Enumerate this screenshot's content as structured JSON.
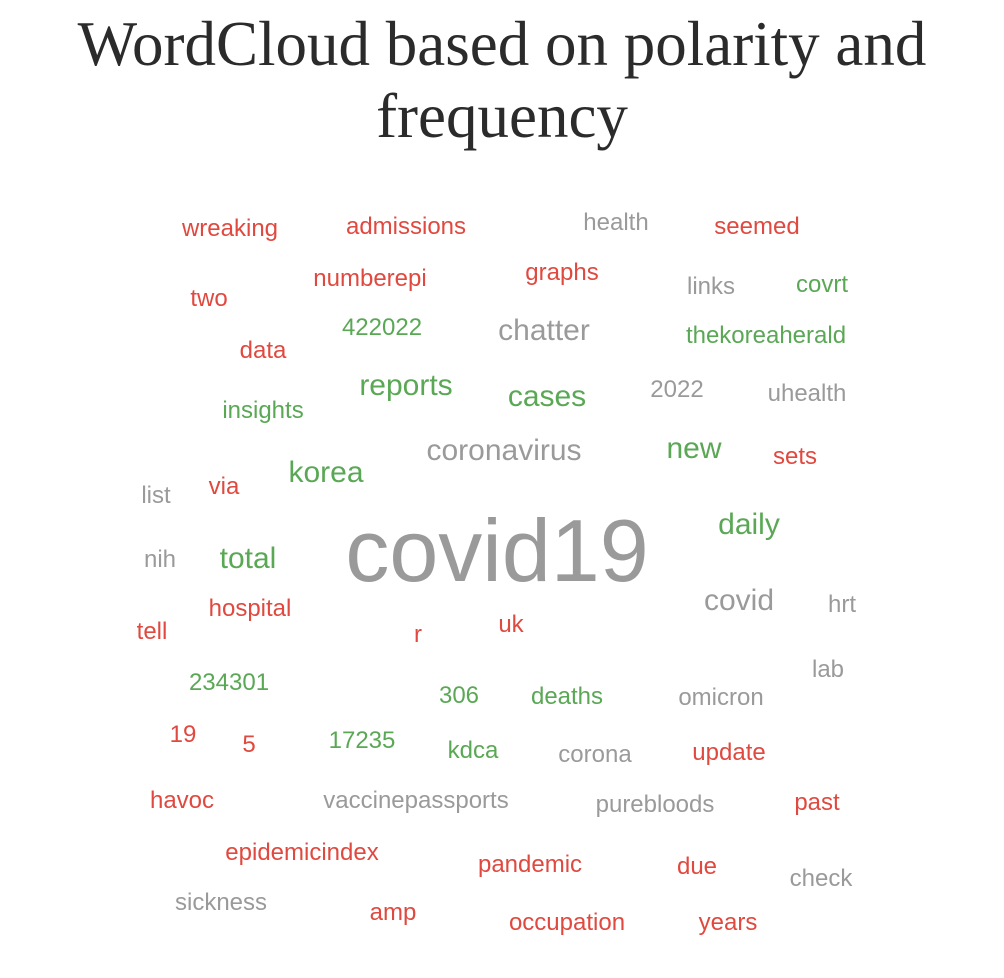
{
  "chart_data": {
    "type": "wordcloud",
    "title": "WordCloud based on polarity and frequency",
    "colors": {
      "positive": "#5aa855",
      "negative": "#e0493f",
      "neutral": "#9a9a9a"
    },
    "words": [
      {
        "text": "covid19",
        "size": 7,
        "polarity": "neutral"
      },
      {
        "text": "coronavirus",
        "size": 3,
        "polarity": "neutral"
      },
      {
        "text": "chatter",
        "size": 3,
        "polarity": "neutral"
      },
      {
        "text": "covid",
        "size": 3,
        "polarity": "neutral"
      },
      {
        "text": "reports",
        "size": 3,
        "polarity": "positive"
      },
      {
        "text": "cases",
        "size": 3,
        "polarity": "positive"
      },
      {
        "text": "korea",
        "size": 3,
        "polarity": "positive"
      },
      {
        "text": "new",
        "size": 3,
        "polarity": "positive"
      },
      {
        "text": "daily",
        "size": 3,
        "polarity": "positive"
      },
      {
        "text": "total",
        "size": 3,
        "polarity": "positive"
      },
      {
        "text": "wreaking",
        "size": 1,
        "polarity": "negative"
      },
      {
        "text": "admissions",
        "size": 1,
        "polarity": "negative"
      },
      {
        "text": "health",
        "size": 1,
        "polarity": "neutral"
      },
      {
        "text": "seemed",
        "size": 1,
        "polarity": "negative"
      },
      {
        "text": "numberepi",
        "size": 1,
        "polarity": "negative"
      },
      {
        "text": "graphs",
        "size": 1,
        "polarity": "negative"
      },
      {
        "text": "two",
        "size": 1,
        "polarity": "negative"
      },
      {
        "text": "links",
        "size": 1,
        "polarity": "neutral"
      },
      {
        "text": "covrt",
        "size": 1,
        "polarity": "positive"
      },
      {
        "text": "422022",
        "size": 1,
        "polarity": "positive"
      },
      {
        "text": "thekoreaherald",
        "size": 1,
        "polarity": "positive"
      },
      {
        "text": "data",
        "size": 1,
        "polarity": "negative"
      },
      {
        "text": "2022",
        "size": 1,
        "polarity": "neutral"
      },
      {
        "text": "uhealth",
        "size": 1,
        "polarity": "neutral"
      },
      {
        "text": "insights",
        "size": 1,
        "polarity": "positive"
      },
      {
        "text": "sets",
        "size": 1,
        "polarity": "negative"
      },
      {
        "text": "list",
        "size": 1,
        "polarity": "neutral"
      },
      {
        "text": "via",
        "size": 1,
        "polarity": "negative"
      },
      {
        "text": "nih",
        "size": 1,
        "polarity": "neutral"
      },
      {
        "text": "hospital",
        "size": 1,
        "polarity": "negative"
      },
      {
        "text": "hrt",
        "size": 1,
        "polarity": "neutral"
      },
      {
        "text": "tell",
        "size": 1,
        "polarity": "negative"
      },
      {
        "text": "r",
        "size": 1,
        "polarity": "negative"
      },
      {
        "text": "uk",
        "size": 1,
        "polarity": "negative"
      },
      {
        "text": "lab",
        "size": 1,
        "polarity": "neutral"
      },
      {
        "text": "234301",
        "size": 1,
        "polarity": "positive"
      },
      {
        "text": "306",
        "size": 1,
        "polarity": "positive"
      },
      {
        "text": "deaths",
        "size": 1,
        "polarity": "positive"
      },
      {
        "text": "omicron",
        "size": 1,
        "polarity": "neutral"
      },
      {
        "text": "19",
        "size": 1,
        "polarity": "negative"
      },
      {
        "text": "5",
        "size": 1,
        "polarity": "negative"
      },
      {
        "text": "17235",
        "size": 1,
        "polarity": "positive"
      },
      {
        "text": "kdca",
        "size": 1,
        "polarity": "positive"
      },
      {
        "text": "corona",
        "size": 1,
        "polarity": "neutral"
      },
      {
        "text": "update",
        "size": 1,
        "polarity": "negative"
      },
      {
        "text": "havoc",
        "size": 1,
        "polarity": "negative"
      },
      {
        "text": "vaccinepassports",
        "size": 1,
        "polarity": "neutral"
      },
      {
        "text": "purebloods",
        "size": 1,
        "polarity": "neutral"
      },
      {
        "text": "past",
        "size": 1,
        "polarity": "negative"
      },
      {
        "text": "epidemicindex",
        "size": 1,
        "polarity": "negative"
      },
      {
        "text": "pandemic",
        "size": 1,
        "polarity": "negative"
      },
      {
        "text": "due",
        "size": 1,
        "polarity": "negative"
      },
      {
        "text": "check",
        "size": 1,
        "polarity": "neutral"
      },
      {
        "text": "sickness",
        "size": 1,
        "polarity": "neutral"
      },
      {
        "text": "amp",
        "size": 1,
        "polarity": "negative"
      },
      {
        "text": "occupation",
        "size": 1,
        "polarity": "negative"
      },
      {
        "text": "years",
        "size": 1,
        "polarity": "negative"
      }
    ]
  }
}
